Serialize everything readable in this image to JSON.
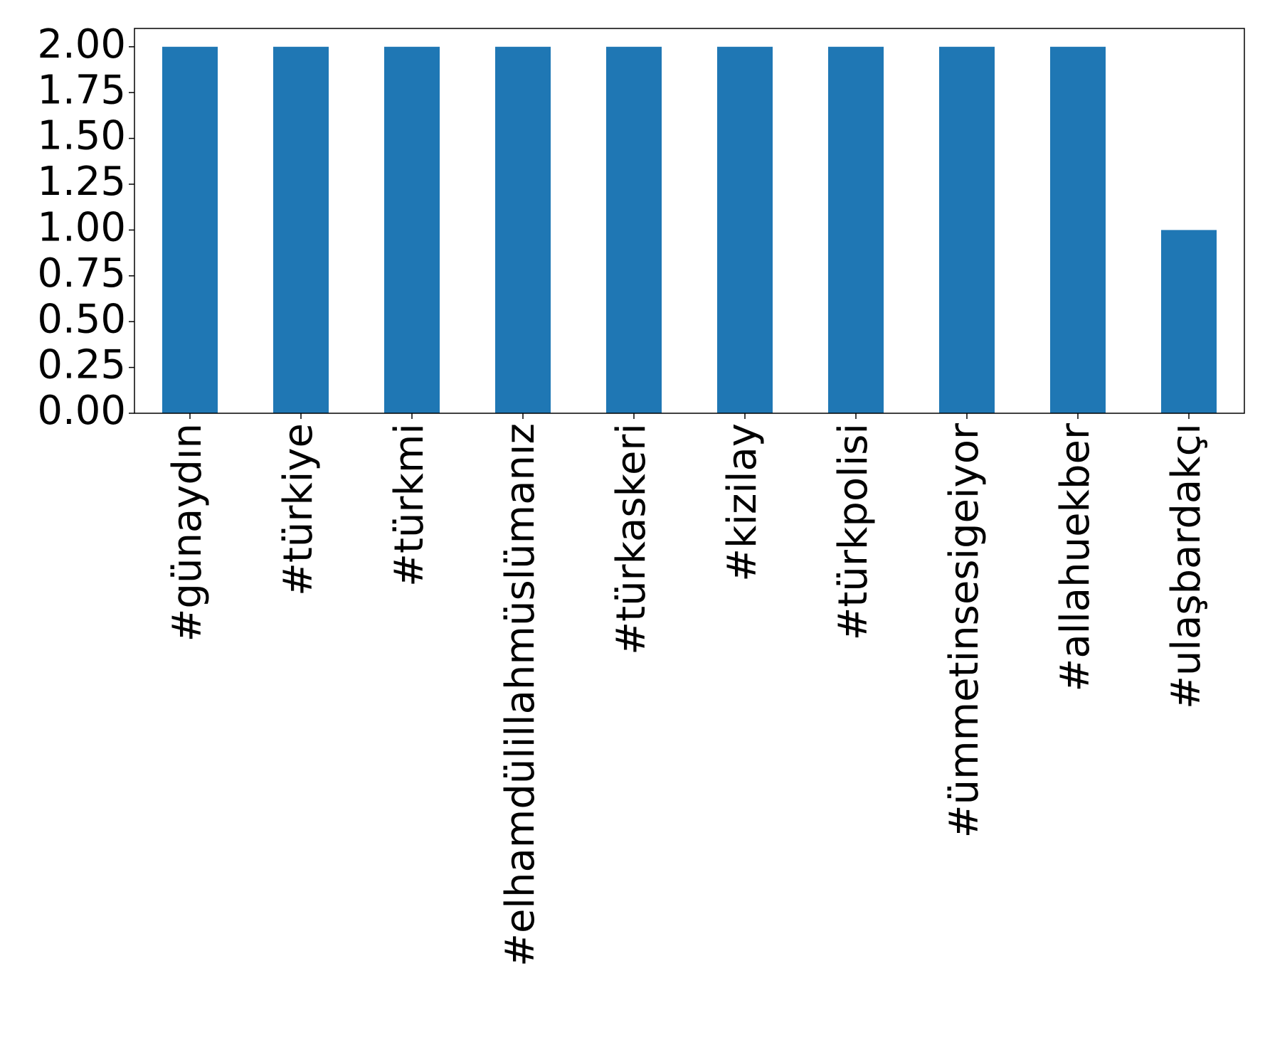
{
  "chart_data": {
    "type": "bar",
    "categories": [
      "#günaydın",
      "#türkiye",
      "#türkmi",
      "#elhamdülillahmüslümanız",
      "#türkaskeri",
      "#kizilay",
      "#türkpolisi",
      "#ümmetinsesigeiyor",
      "#allahuekber",
      "#ulaşbardakçı"
    ],
    "values": [
      2,
      2,
      2,
      2,
      2,
      2,
      2,
      2,
      2,
      1
    ],
    "color": "#1f77b4",
    "ylim": [
      0,
      2.1
    ],
    "yticks": [
      {
        "value": 0,
        "label": "0.00"
      },
      {
        "value": 0.25,
        "label": "0.25"
      },
      {
        "value": 0.5,
        "label": "0.50"
      },
      {
        "value": 0.75,
        "label": "0.75"
      },
      {
        "value": 1,
        "label": "1.00"
      },
      {
        "value": 1.25,
        "label": "1.25"
      },
      {
        "value": 1.5,
        "label": "1.50"
      },
      {
        "value": 1.75,
        "label": "1.75"
      },
      {
        "value": 2,
        "label": "2.00"
      }
    ],
    "grid": false
  }
}
